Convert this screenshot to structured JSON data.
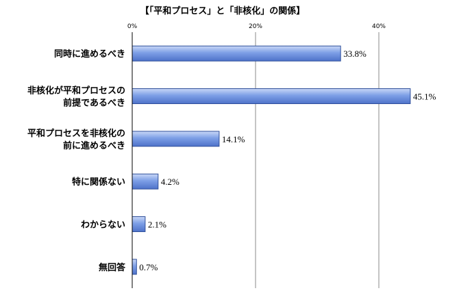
{
  "chart_data": {
    "type": "bar",
    "orientation": "horizontal",
    "title": "【「平和プロセス」と「非核化」の関係】",
    "categories": [
      [
        "同時に進めるべき"
      ],
      [
        "非核化が平和プロセスの",
        "前提であるべき"
      ],
      [
        "平和プロセスを非核化の",
        "前に進めるべき"
      ],
      [
        "特に関係ない"
      ],
      [
        "わからない"
      ],
      [
        "無回答"
      ]
    ],
    "values": [
      33.8,
      45.1,
      14.1,
      4.2,
      2.1,
      0.7
    ],
    "value_labels": [
      "33.8%",
      "45.1%",
      "14.1%",
      "4.2%",
      "2.1%",
      "0.7%"
    ],
    "xlim": [
      0,
      50
    ],
    "ticks": [
      0,
      20,
      40
    ],
    "tick_labels": [
      "0%",
      "20%",
      "40%"
    ],
    "axis_position": "top",
    "grid": true,
    "bar_color": "#5b82d9"
  }
}
